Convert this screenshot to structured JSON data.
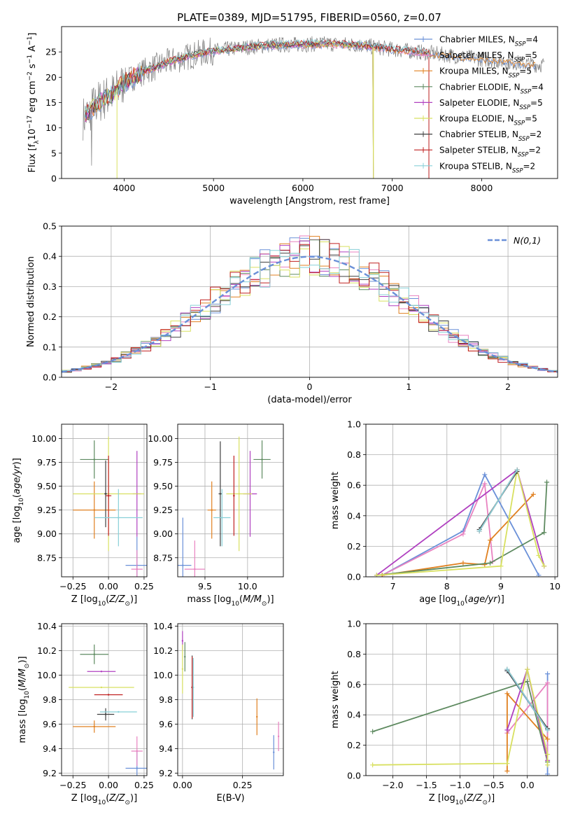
{
  "figure": {
    "title": "PLATE=0389, MJD=51795, FIBERID=0560, z=0.07"
  },
  "legend_labels": [
    "Chabrier MILES, N_SSP=4",
    "Salpeter MILES, N_SSP=5",
    "Kroupa MILES, N_SSP=5",
    "Chabrier ELODIE, N_SSP=4",
    "Salpeter ELODIE, N_SSP=5",
    "Kroupa ELODIE, N_SSP=5",
    "Chabrier STELIB, N_SSP=2",
    "Salpeter STELIB, N_SSP=2",
    "Kroupa STELIB, N_SSP=2"
  ],
  "colors": {
    "Chabrier MILES": "#6a90d8",
    "Salpeter MILES": "#e882c0",
    "Kroupa MILES": "#e08020",
    "Chabrier ELODIE": "#5e8a60",
    "Salpeter ELODIE": "#b040c0",
    "Kroupa ELODIE": "#d8e060",
    "Chabrier STELIB": "#404040",
    "Salpeter STELIB": "#c02020",
    "Kroupa STELIB": "#88d0d8",
    "data": "#808080"
  },
  "chart_data": [
    {
      "id": "spectrum",
      "type": "line",
      "title": "PLATE=0389, MJD=51795, FIBERID=0560, z=0.07",
      "xlabel": "wavelength [Angstrom, rest frame]",
      "ylabel": "Flux [f_λ 10^-17 erg cm^-2 s^-1 A^-1]",
      "xlim": [
        3300,
        8850
      ],
      "ylim": [
        0,
        30
      ],
      "xticks": [
        4000,
        5000,
        6000,
        7000,
        8000
      ],
      "yticks": [
        0,
        5,
        10,
        15,
        20,
        25
      ],
      "continuum_x": [
        3550,
        3700,
        3900,
        4000,
        4200,
        4500,
        4800,
        5000,
        5300,
        5600,
        6000,
        6300,
        6600,
        6800,
        7000,
        7400,
        7800,
        8200,
        8600
      ],
      "continuum_y": [
        12,
        15,
        17,
        19,
        21,
        23,
        24.5,
        25.2,
        25.8,
        26.3,
        26.5,
        26.6,
        26.4,
        26.0,
        25.5,
        24.8,
        24.0,
        23.2,
        22.5
      ],
      "grid": false,
      "legend": "right"
    },
    {
      "id": "residuals",
      "type": "line",
      "xlabel": "(data-model)/error",
      "ylabel": "Normed distribution",
      "xlim": [
        -2.5,
        2.5
      ],
      "ylim": [
        0,
        0.5
      ],
      "xticks": [
        -2,
        -1,
        0,
        1,
        2
      ],
      "yticks": [
        0.0,
        0.1,
        0.2,
        0.3,
        0.4,
        0.5
      ],
      "grid": true,
      "legend_label": "N(0,1)",
      "legend": "top-right"
    },
    {
      "id": "age_vs_Z",
      "type": "scatter",
      "xlabel": "Z [log10(Z/Z☉)]",
      "ylabel": "age [log10(age/yr)]",
      "xlim": [
        -0.33,
        0.27
      ],
      "ylim": [
        8.55,
        10.15
      ],
      "xticks": [
        -0.25,
        0.0,
        0.25
      ],
      "yticks": [
        8.75,
        9.0,
        9.25,
        9.5,
        9.75,
        10.0
      ],
      "points": [
        {
          "model": "Chabrier MILES",
          "x": 0.2,
          "y": 8.67,
          "xerr": 0.08,
          "yerr": 0.3
        },
        {
          "model": "Salpeter MILES",
          "x": 0.2,
          "y": 8.63,
          "xerr": 0.04,
          "yerr": 0.2
        },
        {
          "model": "Kroupa MILES",
          "x": -0.1,
          "y": 9.25,
          "xerr": 0.15,
          "yerr": 0.3
        },
        {
          "model": "Chabrier ELODIE",
          "x": -0.1,
          "y": 9.78,
          "xerr": 0.1,
          "yerr": 0.2
        },
        {
          "model": "Salpeter ELODIE",
          "x": 0.2,
          "y": 9.42,
          "xerr": 0.03,
          "yerr": 0.45
        },
        {
          "model": "Kroupa ELODIE",
          "x": 0.0,
          "y": 9.42,
          "xerr": 0.25,
          "yerr": 0.6
        },
        {
          "model": "Chabrier STELIB",
          "x": -0.02,
          "y": 9.42,
          "xerr": 0.01,
          "yerr": 0.35
        },
        {
          "model": "Salpeter STELIB",
          "x": 0.0,
          "y": 9.4,
          "xerr": 0.02,
          "yerr": 0.42
        },
        {
          "model": "Kroupa STELIB",
          "x": 0.07,
          "y": 9.17,
          "xerr": 0.17,
          "yerr": 0.3
        }
      ]
    },
    {
      "id": "age_vs_mass",
      "type": "scatter",
      "xlabel": "mass [log10(M/M☉)]",
      "ylabel": "",
      "xlim": [
        9.18,
        10.42
      ],
      "ylim": [
        8.55,
        10.15
      ],
      "xticks": [
        9.5,
        10.0
      ],
      "yticks": [
        8.75,
        9.0,
        9.25,
        9.5,
        9.75,
        10.0
      ],
      "points": [
        {
          "model": "Chabrier MILES",
          "x": 9.24,
          "y": 8.67,
          "xerr": 0.1,
          "yerr": 0.5
        },
        {
          "model": "Salpeter MILES",
          "x": 9.38,
          "y": 8.63,
          "xerr": 0.12,
          "yerr": 0.3
        },
        {
          "model": "Kroupa MILES",
          "x": 9.58,
          "y": 9.25,
          "xerr": 0.05,
          "yerr": 0.3
        },
        {
          "model": "Chabrier ELODIE",
          "x": 10.17,
          "y": 9.78,
          "xerr": 0.1,
          "yerr": 0.2
        },
        {
          "model": "Salpeter ELODIE",
          "x": 10.03,
          "y": 9.42,
          "xerr": 0.08,
          "yerr": 0.45
        },
        {
          "model": "Kroupa ELODIE",
          "x": 9.9,
          "y": 9.42,
          "xerr": 0.15,
          "yerr": 0.6
        },
        {
          "model": "Chabrier STELIB",
          "x": 9.68,
          "y": 9.42,
          "xerr": 0.02,
          "yerr": 0.55
        },
        {
          "model": "Salpeter STELIB",
          "x": 9.84,
          "y": 9.4,
          "xerr": 0.01,
          "yerr": 0.42
        },
        {
          "model": "Kroupa STELIB",
          "x": 9.7,
          "y": 9.17,
          "xerr": 0.1,
          "yerr": 0.3
        }
      ]
    },
    {
      "id": "weight_vs_age",
      "type": "line",
      "xlabel": "age [log10(age/yr)]",
      "ylabel": "mass weight",
      "xlim": [
        6.5,
        10.05
      ],
      "ylim": [
        0,
        1
      ],
      "xticks": [
        7,
        8,
        9,
        10
      ],
      "yticks": [
        0.0,
        0.2,
        0.4,
        0.6,
        0.8,
        1.0
      ],
      "grid": true,
      "series": [
        {
          "model": "Chabrier MILES",
          "x": [
            6.8,
            8.3,
            8.7,
            9.7
          ],
          "y": [
            0.01,
            0.3,
            0.67,
            0.01
          ]
        },
        {
          "model": "Salpeter MILES",
          "x": [
            6.8,
            8.3,
            8.7,
            8.85
          ],
          "y": [
            0.01,
            0.28,
            0.61,
            0.1
          ]
        },
        {
          "model": "Kroupa MILES",
          "x": [
            6.8,
            8.3,
            8.7,
            8.8,
            9.6
          ],
          "y": [
            0.01,
            0.09,
            0.08,
            0.24,
            0.54
          ]
        },
        {
          "model": "Chabrier ELODIE",
          "x": [
            6.7,
            8.8,
            9.8,
            9.85
          ],
          "y": [
            0.01,
            0.09,
            0.29,
            0.62
          ]
        },
        {
          "model": "Salpeter ELODIE",
          "x": [
            6.7,
            9.3,
            9.8
          ],
          "y": [
            0.01,
            0.7,
            0.07
          ]
        },
        {
          "model": "Kroupa ELODIE",
          "x": [
            6.7,
            9.0,
            9.3,
            9.7,
            9.8
          ],
          "y": [
            0.01,
            0.07,
            0.7,
            0.14,
            0.07
          ]
        },
        {
          "model": "Chabrier STELIB",
          "x": [
            8.6,
            9.3
          ],
          "y": [
            0.31,
            0.69
          ]
        },
        {
          "model": "Salpeter STELIB",
          "x": [
            8.6,
            9.3
          ],
          "y": [
            0.3,
            0.7
          ]
        },
        {
          "model": "Kroupa STELIB",
          "x": [
            8.6,
            9.3
          ],
          "y": [
            0.3,
            0.7
          ]
        }
      ]
    },
    {
      "id": "mass_vs_Z",
      "type": "scatter",
      "xlabel": "Z [log10(Z/Z☉)]",
      "ylabel": "mass [log10(M/M☉)]",
      "xlim": [
        -0.33,
        0.27
      ],
      "ylim": [
        9.18,
        10.42
      ],
      "xticks": [
        -0.25,
        0.0,
        0.25
      ],
      "yticks": [
        9.2,
        9.4,
        9.6,
        9.8,
        10.0,
        10.2,
        10.4
      ],
      "points": [
        {
          "model": "Chabrier MILES",
          "x": 0.2,
          "y": 9.24,
          "xerr": 0.08,
          "yerr": 0.14
        },
        {
          "model": "Salpeter MILES",
          "x": 0.2,
          "y": 9.38,
          "xerr": 0.04,
          "yerr": 0.12
        },
        {
          "model": "Kroupa MILES",
          "x": -0.1,
          "y": 9.58,
          "xerr": 0.15,
          "yerr": 0.05
        },
        {
          "model": "Chabrier ELODIE",
          "x": -0.1,
          "y": 10.17,
          "xerr": 0.1,
          "yerr": 0.08
        },
        {
          "model": "Salpeter ELODIE",
          "x": -0.05,
          "y": 10.03,
          "xerr": 0.1,
          "yerr": 0.0
        },
        {
          "model": "Kroupa ELODIE",
          "x": -0.05,
          "y": 9.9,
          "xerr": 0.23,
          "yerr": 0.0
        },
        {
          "model": "Chabrier STELIB",
          "x": -0.02,
          "y": 9.68,
          "xerr": 0.06,
          "yerr": 0.05
        },
        {
          "model": "Salpeter STELIB",
          "x": 0.0,
          "y": 9.84,
          "xerr": 0.1,
          "yerr": 0.0
        },
        {
          "model": "Kroupa STELIB",
          "x": 0.07,
          "y": 9.7,
          "xerr": 0.13,
          "yerr": 0.0
        }
      ]
    },
    {
      "id": "mass_vs_ebv",
      "type": "scatter",
      "xlabel": "E(B-V)",
      "ylabel": "",
      "xlim": [
        -0.02,
        0.42
      ],
      "ylim": [
        9.18,
        10.42
      ],
      "xticks": [
        0.0,
        0.25
      ],
      "yticks": [
        9.2,
        9.4,
        9.6,
        9.8,
        10.0,
        10.2,
        10.4
      ],
      "points": [
        {
          "model": "Chabrier MILES",
          "x": 0.38,
          "y": 9.37,
          "xerr": 0.0,
          "yerr": 0.14
        },
        {
          "model": "Salpeter MILES",
          "x": 0.4,
          "y": 9.5,
          "xerr": 0.0,
          "yerr": 0.12
        },
        {
          "model": "Kroupa MILES",
          "x": 0.31,
          "y": 9.66,
          "xerr": 0.0,
          "yerr": 0.15
        },
        {
          "model": "Chabrier ELODIE",
          "x": 0.01,
          "y": 10.15,
          "xerr": 0.0,
          "yerr": 0.12
        },
        {
          "model": "Salpeter ELODIE",
          "x": 0.0,
          "y": 10.28,
          "xerr": 0.0,
          "yerr": 0.08
        },
        {
          "model": "Kroupa ELODIE",
          "x": 0.0,
          "y": 10.05,
          "xerr": 0.0,
          "yerr": 0.2
        },
        {
          "model": "Chabrier STELIB",
          "x": 0.04,
          "y": 9.9,
          "xerr": 0.0,
          "yerr": 0.26
        },
        {
          "model": "Salpeter STELIB",
          "x": 0.04,
          "y": 9.9,
          "xerr": 0.0,
          "yerr": 0.25
        },
        {
          "model": "Kroupa STELIB",
          "x": 0.045,
          "y": 9.9,
          "xerr": 0.0,
          "yerr": 0.24
        }
      ]
    },
    {
      "id": "weight_vs_Z",
      "type": "line",
      "xlabel": "Z [log10(Z/Z☉)]",
      "ylabel": "mass weight",
      "xlim": [
        -2.4,
        0.45
      ],
      "ylim": [
        0,
        1
      ],
      "xticks": [
        -2.0,
        -1.5,
        -1.0,
        -0.5,
        0.0
      ],
      "yticks": [
        0.0,
        0.2,
        0.4,
        0.6,
        0.8,
        1.0
      ],
      "grid": true,
      "series": [
        {
          "model": "Chabrier MILES",
          "x": [
            -0.3,
            0.3,
            0.3,
            0.3
          ],
          "y": [
            0.69,
            0.3,
            0.67,
            0.01
          ]
        },
        {
          "model": "Salpeter MILES",
          "x": [
            -0.3,
            0.3,
            0.3
          ],
          "y": [
            0.28,
            0.61,
            0.1
          ]
        },
        {
          "model": "Kroupa MILES",
          "x": [
            -0.3,
            -0.3,
            0.3,
            0.3
          ],
          "y": [
            0.03,
            0.54,
            0.24,
            0.24
          ]
        },
        {
          "model": "Chabrier ELODIE",
          "x": [
            -2.3,
            0.0,
            0.3,
            0.3
          ],
          "y": [
            0.29,
            0.62,
            0.09,
            0.09
          ]
        },
        {
          "model": "Salpeter ELODIE",
          "x": [
            -0.3,
            0.0,
            0.3
          ],
          "y": [
            0.3,
            0.7,
            0.1
          ]
        },
        {
          "model": "Kroupa ELODIE",
          "x": [
            -2.3,
            -0.3,
            0.0,
            0.3,
            0.3
          ],
          "y": [
            0.07,
            0.08,
            0.7,
            0.14,
            0.07
          ]
        },
        {
          "model": "Chabrier STELIB",
          "x": [
            -0.3,
            0.3
          ],
          "y": [
            0.69,
            0.31
          ]
        },
        {
          "model": "Salpeter STELIB",
          "x": [
            -0.3,
            0.3
          ],
          "y": [
            0.7,
            0.3
          ]
        },
        {
          "model": "Kroupa STELIB",
          "x": [
            -0.3,
            0.3
          ],
          "y": [
            0.7,
            0.3
          ]
        }
      ]
    }
  ]
}
